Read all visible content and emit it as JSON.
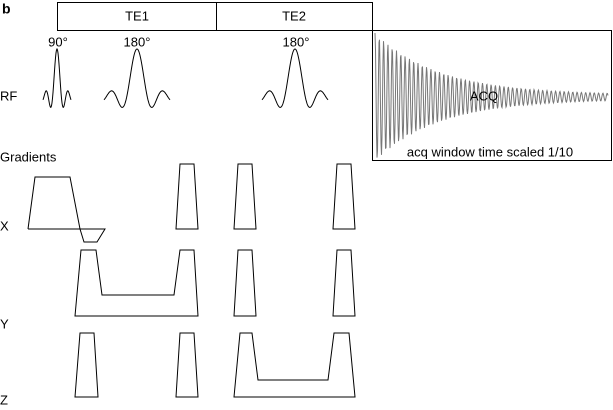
{
  "panel": "b",
  "timing": {
    "te1": "TE1",
    "te2": "TE2"
  },
  "rf": {
    "label": "RF",
    "pulses": [
      "90°",
      "180°",
      "180°"
    ],
    "acq": "ACQ",
    "acq_note": "acq window time scaled 1/10"
  },
  "gradients": {
    "title": "Gradients",
    "x": "X",
    "y": "Y",
    "z": "Z"
  }
}
